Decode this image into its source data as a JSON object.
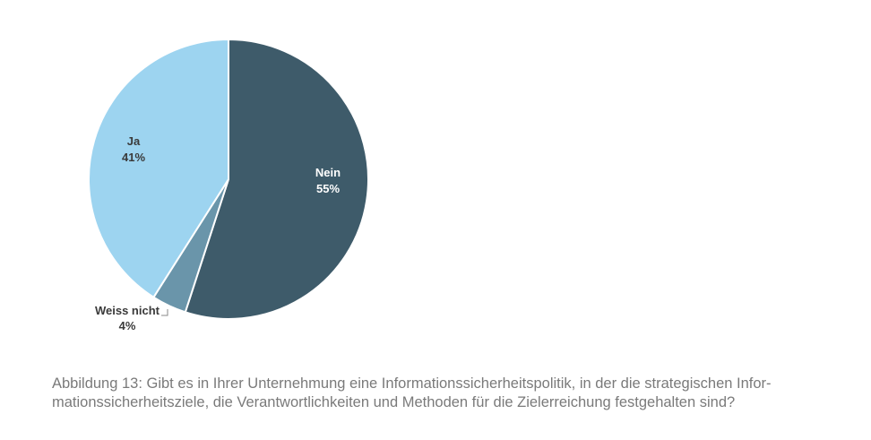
{
  "chart_data": {
    "type": "pie",
    "slices": [
      {
        "label": "Nein",
        "value": 55,
        "value_label": "55%",
        "color": "#3e5b6a",
        "text_color": "#ffffff"
      },
      {
        "label": "Weiss nicht",
        "value": 4,
        "value_label": "4%",
        "color": "#6a95aa",
        "text_color": "#3a3a3a"
      },
      {
        "label": "Ja",
        "value": 41,
        "value_label": "41%",
        "color": "#9dd4f0",
        "text_color": "#3a3a3a"
      }
    ],
    "start": "12 o'clock",
    "direction": "clockwise"
  },
  "caption": {
    "line1": "Abbildung 13: Gibt es in Ihrer Unternehmung eine Informationssicherheitspolitik, in der die strategischen Infor-",
    "line2": "mationssicherheitsziele, die Verantwortlichkeiten und Methoden für die Zielerreichung festgehalten sind?"
  }
}
